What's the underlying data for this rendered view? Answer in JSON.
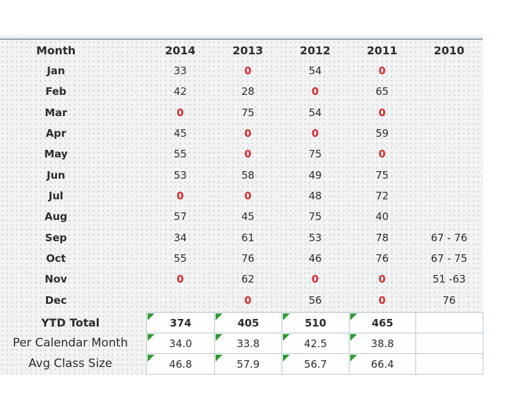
{
  "colors": {
    "zero_red": "#d62b33",
    "triangle_green": "#2e9b32",
    "cell_border": "#b9c7d4",
    "text": "#2d2d2d",
    "rule_gray": "#97a2ad"
  },
  "table": {
    "columns": [
      "Month",
      "2014",
      "2013",
      "2012",
      "2011",
      "2010"
    ],
    "rows": [
      {
        "month": "Jan",
        "values": [
          "33",
          "0",
          "54",
          "0",
          ""
        ]
      },
      {
        "month": "Feb",
        "values": [
          "42",
          "28",
          "0",
          "65",
          ""
        ]
      },
      {
        "month": "Mar",
        "values": [
          "0",
          "75",
          "54",
          "0",
          ""
        ]
      },
      {
        "month": "Apr",
        "values": [
          "45",
          "0",
          "0",
          "59",
          ""
        ]
      },
      {
        "month": "May",
        "values": [
          "55",
          "0",
          "75",
          "0",
          ""
        ]
      },
      {
        "month": "Jun",
        "values": [
          "53",
          "58",
          "49",
          "75",
          ""
        ]
      },
      {
        "month": "Jul",
        "values": [
          "0",
          "0",
          "48",
          "72",
          ""
        ]
      },
      {
        "month": "Aug",
        "values": [
          "57",
          "45",
          "75",
          "40",
          ""
        ]
      },
      {
        "month": "Sep",
        "values": [
          "34",
          "61",
          "53",
          "78",
          "67 - 76"
        ]
      },
      {
        "month": "Oct",
        "values": [
          "55",
          "76",
          "46",
          "76",
          "67 - 75"
        ]
      },
      {
        "month": "Nov",
        "values": [
          "0",
          "62",
          "0",
          "0",
          "51 -63"
        ]
      },
      {
        "month": "Dec",
        "values": [
          "",
          "0",
          "56",
          "0",
          "76"
        ]
      }
    ]
  },
  "summary": {
    "rows": [
      {
        "label": "YTD Total",
        "values": [
          "374",
          "405",
          "510",
          "465",
          ""
        ]
      },
      {
        "label": "Per Calendar Month",
        "values": [
          "34.0",
          "33.8",
          "42.5",
          "38.8",
          ""
        ]
      },
      {
        "label": "Avg Class Size",
        "values": [
          "46.8",
          "57.9",
          "56.7",
          "66.4",
          ""
        ]
      }
    ]
  }
}
